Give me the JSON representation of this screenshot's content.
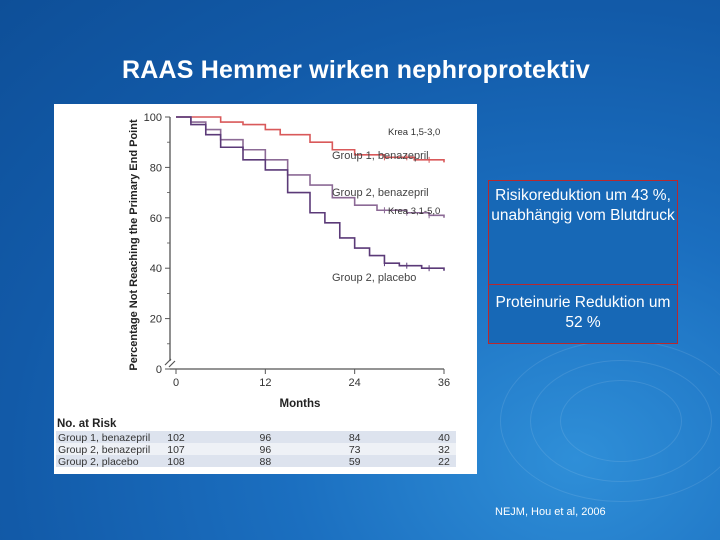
{
  "slide": {
    "title": "RAAS Hemmer wirken nephroprotektiv",
    "box_risk_text": "Risikoreduktion um 43 %, unabhängig vom Blutdruck",
    "box_proteinuria_text": "Proteinurie Reduktion um 52 %",
    "citation": "NEJM, Hou et al, 2006"
  },
  "colors": {
    "benazepril_group1": "#d9595a",
    "benazepril_group2": "#8c6a96",
    "placebo_group2": "#5b3a78",
    "box_border": "#b8282e",
    "table_row_shade": "#dde3ee"
  },
  "chart_data": {
    "type": "line",
    "xlabel": "Months",
    "ylabel": "Percentage Not Reaching the Primary End Point",
    "xlim": [
      0,
      36
    ],
    "ylim": [
      0,
      100
    ],
    "x_ticks": [
      0,
      12,
      24,
      36
    ],
    "y_ticks": [
      0,
      20,
      40,
      60,
      80,
      100
    ],
    "grid": false,
    "series": [
      {
        "name": "Group 1, benazepril",
        "color_key": "benazepril_group1",
        "points": [
          [
            0,
            100
          ],
          [
            3,
            100
          ],
          [
            6,
            98
          ],
          [
            9,
            97
          ],
          [
            12,
            95
          ],
          [
            14,
            93
          ],
          [
            18,
            90
          ],
          [
            21,
            87
          ],
          [
            24,
            85
          ],
          [
            28,
            84
          ],
          [
            32,
            83
          ],
          [
            36,
            82
          ]
        ]
      },
      {
        "name": "Group 2, benazepril",
        "color_key": "benazepril_group2",
        "points": [
          [
            0,
            100
          ],
          [
            2,
            98
          ],
          [
            4,
            95
          ],
          [
            6,
            91
          ],
          [
            9,
            87
          ],
          [
            12,
            83
          ],
          [
            15,
            77
          ],
          [
            18,
            73
          ],
          [
            21,
            68
          ],
          [
            24,
            65
          ],
          [
            27,
            63
          ],
          [
            31,
            62
          ],
          [
            34,
            61
          ],
          [
            36,
            60
          ]
        ]
      },
      {
        "name": "Group 2, placebo",
        "color_key": "placebo_group2",
        "points": [
          [
            0,
            100
          ],
          [
            2,
            97
          ],
          [
            4,
            93
          ],
          [
            6,
            88
          ],
          [
            9,
            83
          ],
          [
            12,
            79
          ],
          [
            15,
            70
          ],
          [
            18,
            62
          ],
          [
            20,
            58
          ],
          [
            22,
            52
          ],
          [
            24,
            48
          ],
          [
            26,
            45
          ],
          [
            28,
            42
          ],
          [
            30,
            41
          ],
          [
            33,
            40
          ],
          [
            36,
            39
          ]
        ]
      }
    ],
    "annotations": [
      "Krea 1,5-3,0",
      "Krea 3,1-5,0"
    ],
    "risk_table": {
      "title": "No. at Risk",
      "rows": [
        {
          "label": "Group 1, benazepril",
          "values": [
            "102",
            "96",
            "84",
            "40"
          ]
        },
        {
          "label": "Group 2, benazepril",
          "values": [
            "107",
            "96",
            "73",
            "32"
          ]
        },
        {
          "label": "Group 2, placebo",
          "values": [
            "108",
            "88",
            "59",
            "22"
          ]
        }
      ]
    }
  }
}
